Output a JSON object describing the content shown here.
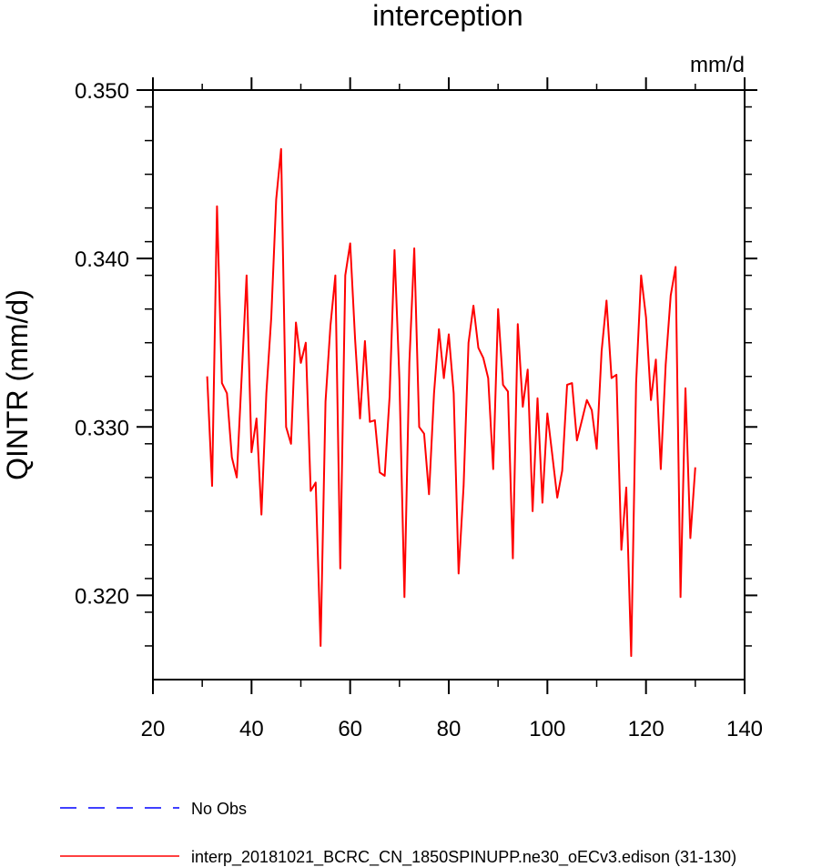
{
  "chart_data": {
    "type": "line",
    "title": "interception",
    "unit_label": "mm/d",
    "ylabel": "QINTR  (mm/d)",
    "xlabel": "",
    "xlim": [
      20,
      140
    ],
    "ylim": [
      0.315,
      0.35
    ],
    "x_ticks": [
      20,
      40,
      60,
      80,
      100,
      120,
      140
    ],
    "x_tick_labels": [
      "20",
      "40",
      "60",
      "80",
      "100",
      "120",
      "140"
    ],
    "y_ticks": [
      0.32,
      0.33,
      0.34,
      0.35
    ],
    "y_tick_labels": [
      "0.320",
      "0.330",
      "0.340",
      "0.350"
    ],
    "y_minor_step": 0.002,
    "x_minor_step": 10,
    "grid": false,
    "legend_position": "bottom-left",
    "series": [
      {
        "name": "No Obs",
        "color": "#0000ff",
        "style": "dashed",
        "x": [],
        "values": []
      },
      {
        "name": "interp_20181021_BCRC_CN_1850SPINUPP.ne30_oECv3.edison (31-130)",
        "color": "#ff0000",
        "style": "solid",
        "x": [
          31,
          32,
          33,
          34,
          35,
          36,
          37,
          38,
          39,
          40,
          41,
          42,
          43,
          44,
          45,
          46,
          47,
          48,
          49,
          50,
          51,
          52,
          53,
          54,
          55,
          56,
          57,
          58,
          59,
          60,
          61,
          62,
          63,
          64,
          65,
          66,
          67,
          68,
          69,
          70,
          71,
          72,
          73,
          74,
          75,
          76,
          77,
          78,
          79,
          80,
          81,
          82,
          83,
          84,
          85,
          86,
          87,
          88,
          89,
          90,
          91,
          92,
          93,
          94,
          95,
          96,
          97,
          98,
          99,
          100,
          101,
          102,
          103,
          104,
          105,
          106,
          107,
          108,
          109,
          110,
          111,
          112,
          113,
          114,
          115,
          116,
          117,
          118,
          119,
          120,
          121,
          122,
          123,
          124,
          125,
          126,
          127,
          128,
          129,
          130
        ],
        "values": [
          0.333,
          0.3265,
          0.3431,
          0.3326,
          0.332,
          0.3282,
          0.327,
          0.333,
          0.339,
          0.3285,
          0.3305,
          0.3248,
          0.332,
          0.3365,
          0.3435,
          0.3465,
          0.33,
          0.329,
          0.3362,
          0.3338,
          0.335,
          0.3262,
          0.3267,
          0.317,
          0.3315,
          0.336,
          0.339,
          0.3216,
          0.339,
          0.3409,
          0.3352,
          0.3305,
          0.3351,
          0.3303,
          0.3304,
          0.3273,
          0.3271,
          0.3318,
          0.3405,
          0.3328,
          0.3199,
          0.3338,
          0.3406,
          0.33,
          0.3296,
          0.326,
          0.332,
          0.3358,
          0.3329,
          0.3355,
          0.332,
          0.3213,
          0.3265,
          0.335,
          0.3372,
          0.3347,
          0.3341,
          0.3329,
          0.3275,
          0.337,
          0.3325,
          0.3321,
          0.3222,
          0.3361,
          0.3312,
          0.3334,
          0.325,
          0.3317,
          0.3255,
          0.3308,
          0.3283,
          0.3258,
          0.3274,
          0.3325,
          0.3326,
          0.3292,
          0.3304,
          0.3316,
          0.331,
          0.3287,
          0.3345,
          0.3375,
          0.3329,
          0.3331,
          0.3227,
          0.3264,
          0.3164,
          0.3326,
          0.339,
          0.3365,
          0.3316,
          0.334,
          0.3275,
          0.3337,
          0.3378,
          0.3395,
          0.3199,
          0.3323,
          0.3234,
          0.3276
        ]
      }
    ]
  }
}
